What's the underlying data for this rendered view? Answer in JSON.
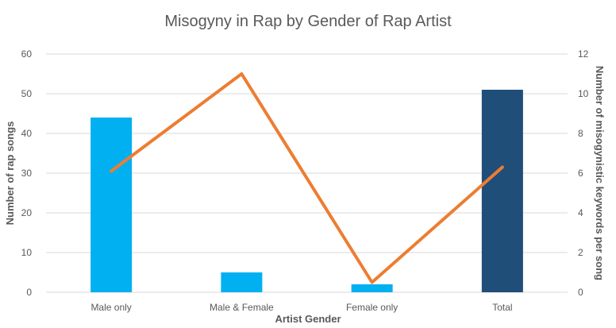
{
  "chart_data": {
    "type": "bar",
    "title": "Misogyny in Rap by Gender of Rap Artist",
    "xlabel": "Artist Gender",
    "ylabel": "Number of rap songs",
    "y2label": "Number of misogynistic keywords per song",
    "categories": [
      "Male only",
      "Male & Female",
      "Female only",
      "Total"
    ],
    "ylim": [
      0,
      60
    ],
    "y_ticks": [
      "0",
      "10",
      "20",
      "30",
      "40",
      "50",
      "60"
    ],
    "y2lim": [
      0,
      12
    ],
    "y2_ticks": [
      "0",
      "2",
      "4",
      "6",
      "8",
      "10",
      "12"
    ],
    "grid": true,
    "legend": "none",
    "series": [
      {
        "type": "bar",
        "axis": "left",
        "values": [
          44,
          5,
          2,
          51
        ],
        "colors": [
          "#00b0f0",
          "#00b0f0",
          "#00b0f0",
          "#1f4e79"
        ]
      },
      {
        "type": "line",
        "axis": "right",
        "values": [
          6.1,
          11,
          0.5,
          6.3
        ],
        "color": "#ed7d31"
      }
    ]
  }
}
